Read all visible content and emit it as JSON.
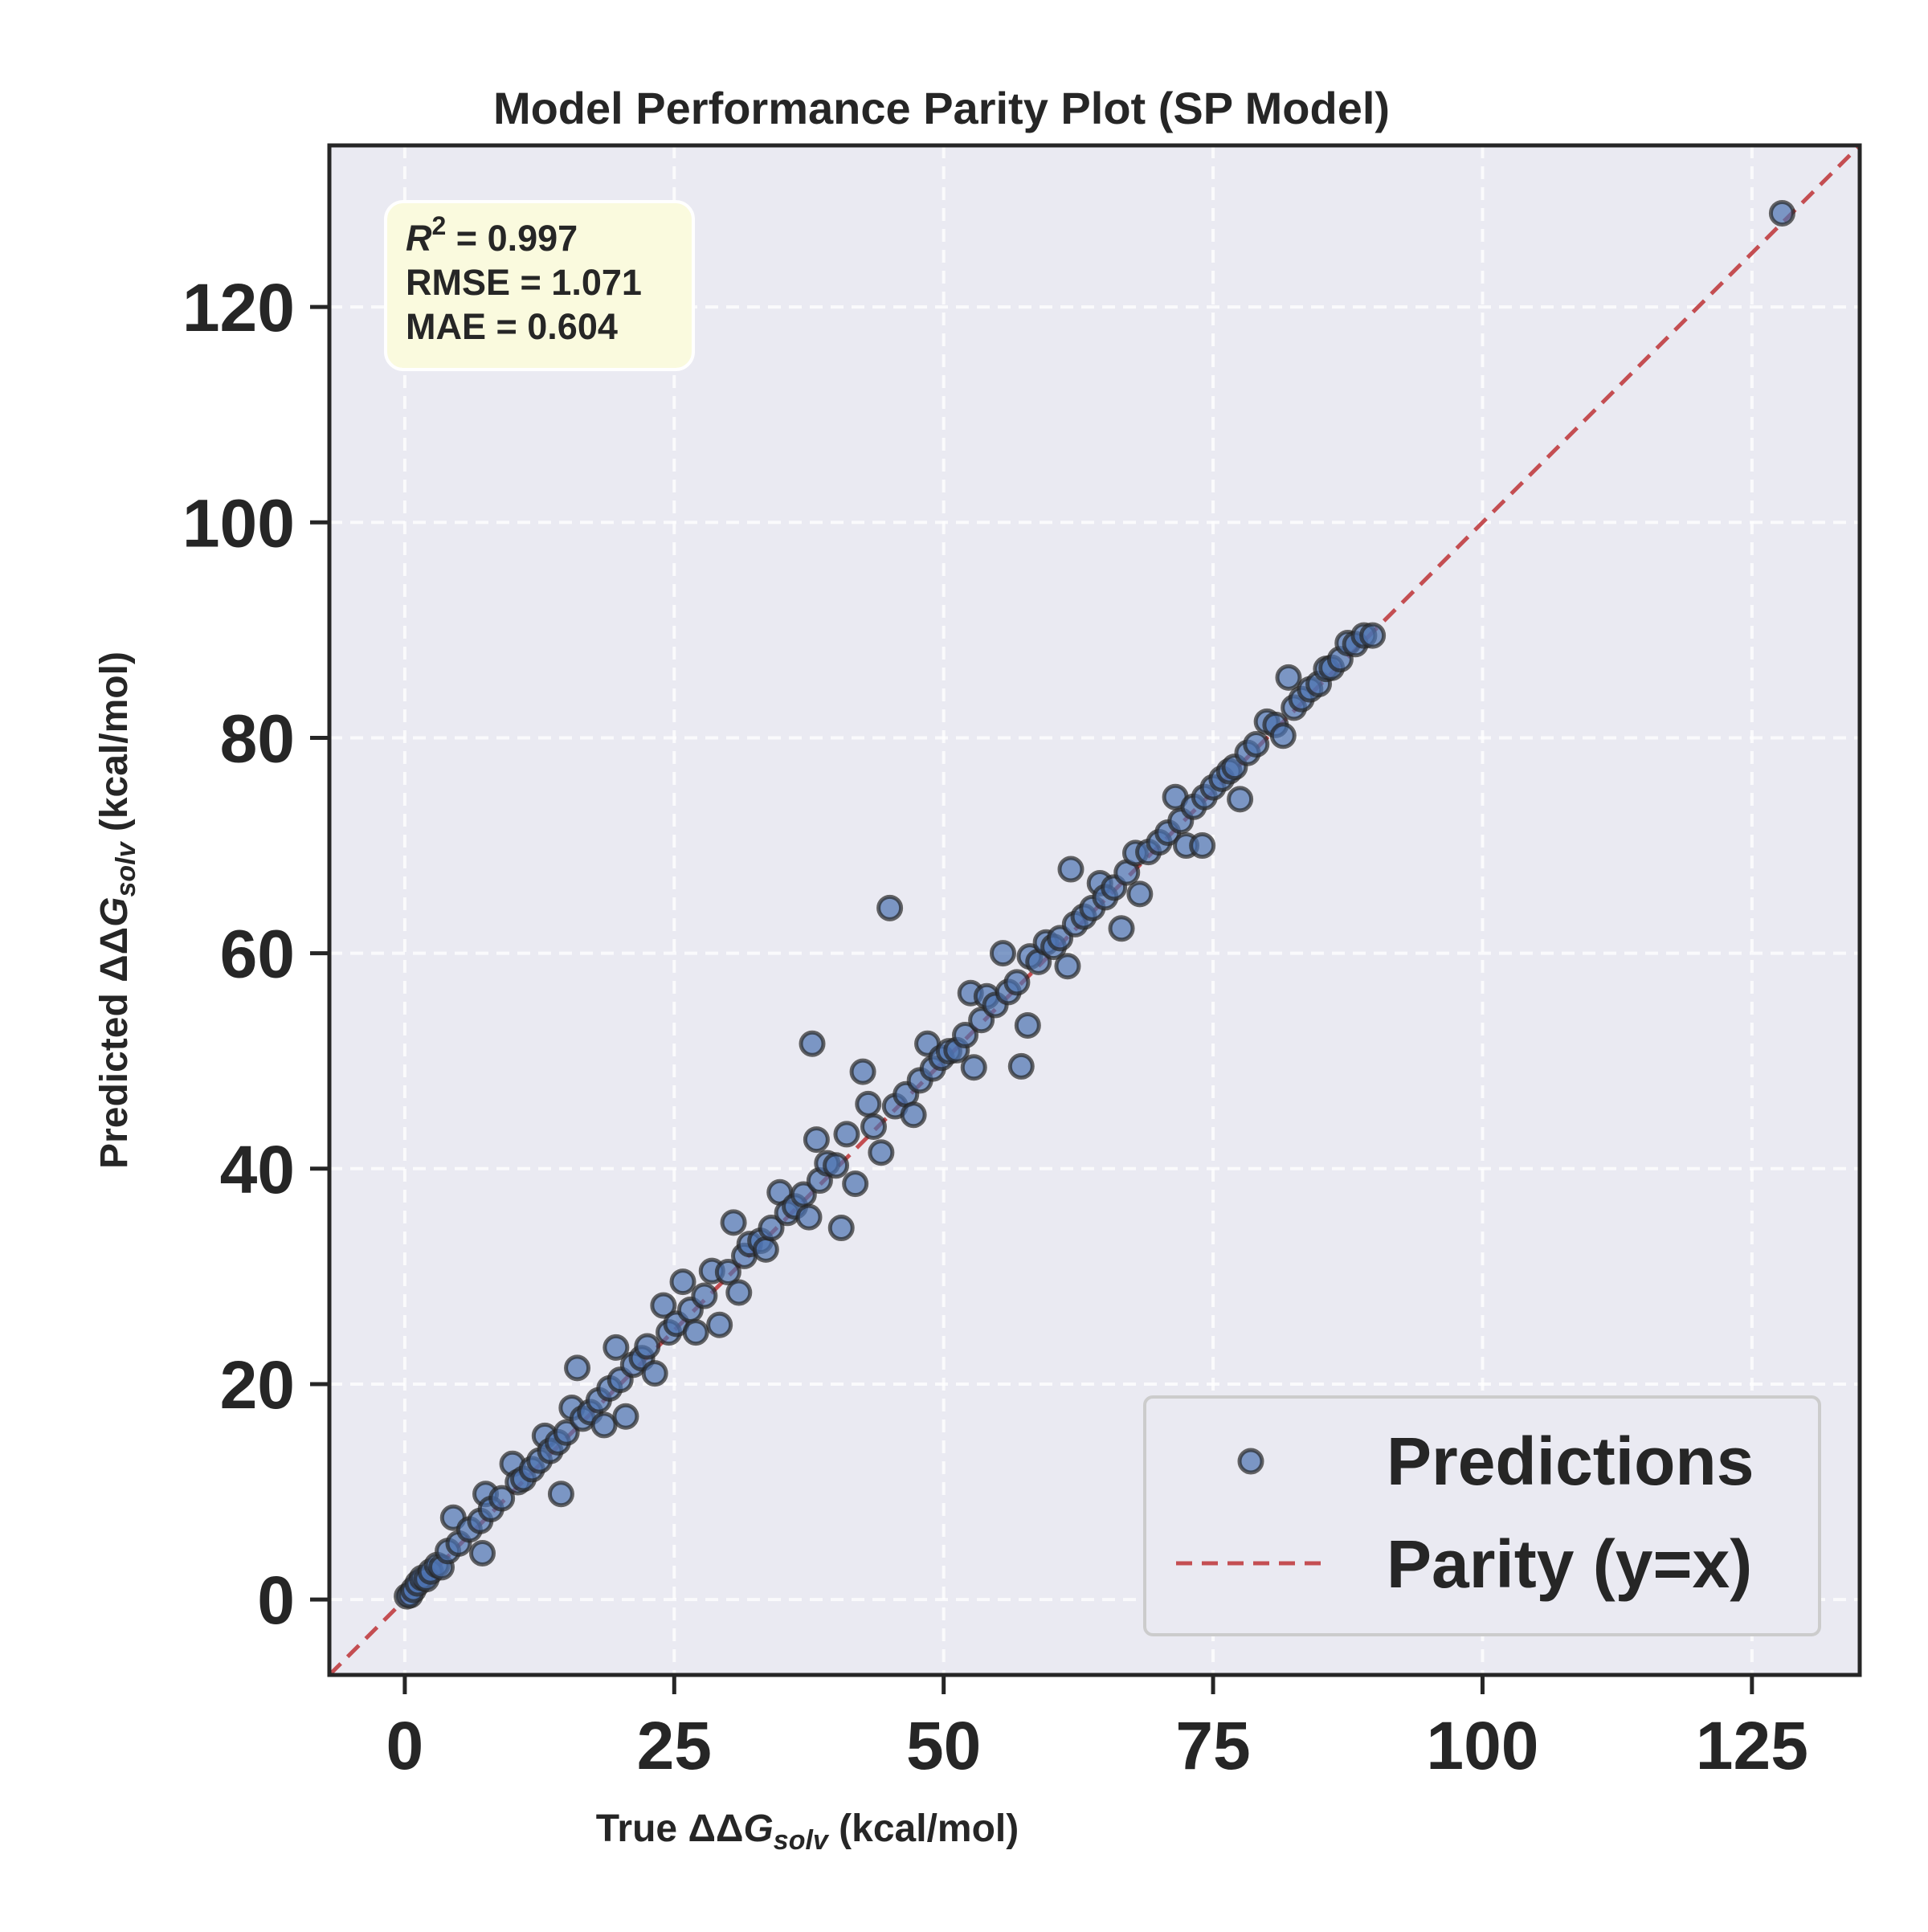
{
  "chart_data": {
    "type": "scatter",
    "title": "Model Performance Parity Plot (SP Model)",
    "xlabel": {
      "pre": "True ΔΔ",
      "var": "G",
      "sub": "solv",
      "post": " (kcal/mol)"
    },
    "ylabel": {
      "pre": "Predicted ΔΔ",
      "var": "G",
      "sub": "solv",
      "post": " (kcal/mol)"
    },
    "xlim": [
      -7,
      135
    ],
    "ylim": [
      -7,
      135
    ],
    "xticks": [
      0,
      25,
      50,
      75,
      100,
      125
    ],
    "yticks": [
      0,
      20,
      40,
      60,
      80,
      100,
      120
    ],
    "grid": true,
    "legend_position": "bottom-right",
    "stats": {
      "r2_label": "R",
      "r2_sup": "2",
      "r2_value": " = 0.997",
      "rmse": "RMSE = 1.071",
      "mae": "MAE = 0.604"
    },
    "series": [
      {
        "name": "Predictions",
        "kind": "scatter",
        "color": "#4c72b0",
        "points": [
          [
            0.2,
            0.3
          ],
          [
            0.5,
            0.4
          ],
          [
            0.8,
            0.9
          ],
          [
            1.2,
            1.5
          ],
          [
            1.6,
            2.0
          ],
          [
            2.0,
            1.9
          ],
          [
            2.4,
            2.6
          ],
          [
            3.0,
            3.2
          ],
          [
            3.4,
            3.0
          ],
          [
            4.0,
            4.5
          ],
          [
            4.5,
            7.6
          ],
          [
            5.0,
            5.2
          ],
          [
            6.0,
            6.5
          ],
          [
            7.0,
            7.3
          ],
          [
            7.2,
            4.3
          ],
          [
            7.5,
            9.8
          ],
          [
            8.0,
            8.4
          ],
          [
            9.0,
            9.4
          ],
          [
            10.0,
            12.6
          ],
          [
            10.5,
            10.9
          ],
          [
            11.0,
            11.2
          ],
          [
            11.8,
            12.1
          ],
          [
            12.5,
            12.9
          ],
          [
            13.0,
            15.2
          ],
          [
            13.5,
            13.8
          ],
          [
            14.2,
            14.6
          ],
          [
            14.5,
            9.8
          ],
          [
            15.0,
            15.5
          ],
          [
            15.5,
            17.8
          ],
          [
            16.0,
            21.5
          ],
          [
            16.5,
            16.8
          ],
          [
            17.2,
            17.4
          ],
          [
            18.0,
            18.5
          ],
          [
            18.5,
            16.2
          ],
          [
            19.0,
            19.6
          ],
          [
            19.6,
            23.4
          ],
          [
            20.0,
            20.4
          ],
          [
            20.5,
            17.0
          ],
          [
            21.2,
            21.8
          ],
          [
            22.0,
            22.4
          ],
          [
            22.5,
            23.5
          ],
          [
            23.2,
            21.0
          ],
          [
            24.0,
            27.3
          ],
          [
            24.5,
            24.8
          ],
          [
            25.2,
            25.6
          ],
          [
            25.8,
            29.5
          ],
          [
            26.5,
            26.9
          ],
          [
            27.0,
            24.8
          ],
          [
            27.8,
            28.2
          ],
          [
            28.5,
            30.5
          ],
          [
            29.2,
            25.5
          ],
          [
            30.0,
            30.4
          ],
          [
            30.5,
            35.0
          ],
          [
            31.0,
            28.5
          ],
          [
            31.5,
            31.9
          ],
          [
            32.0,
            33.0
          ],
          [
            33.0,
            33.3
          ],
          [
            33.5,
            32.5
          ],
          [
            34.0,
            34.5
          ],
          [
            34.8,
            37.8
          ],
          [
            35.5,
            35.9
          ],
          [
            36.2,
            36.5
          ],
          [
            37.0,
            37.6
          ],
          [
            37.5,
            35.5
          ],
          [
            37.8,
            51.6
          ],
          [
            38.2,
            42.7
          ],
          [
            38.5,
            38.9
          ],
          [
            39.2,
            40.5
          ],
          [
            40.0,
            40.3
          ],
          [
            40.5,
            34.5
          ],
          [
            41.0,
            43.2
          ],
          [
            41.8,
            38.6
          ],
          [
            42.5,
            49.0
          ],
          [
            43.0,
            46.0
          ],
          [
            43.5,
            43.9
          ],
          [
            44.2,
            41.5
          ],
          [
            45.0,
            64.2
          ],
          [
            45.5,
            45.8
          ],
          [
            46.5,
            46.9
          ],
          [
            47.2,
            45.0
          ],
          [
            47.8,
            48.2
          ],
          [
            48.5,
            51.6
          ],
          [
            49.0,
            49.3
          ],
          [
            49.8,
            50.3
          ],
          [
            50.5,
            50.9
          ],
          [
            51.2,
            51.0
          ],
          [
            52.0,
            52.4
          ],
          [
            52.5,
            56.3
          ],
          [
            52.8,
            49.4
          ],
          [
            53.5,
            53.8
          ],
          [
            54.0,
            56.0
          ],
          [
            54.8,
            55.2
          ],
          [
            55.5,
            60.0
          ],
          [
            56.0,
            56.4
          ],
          [
            56.8,
            57.3
          ],
          [
            57.2,
            49.5
          ],
          [
            57.8,
            53.3
          ],
          [
            58.0,
            59.7
          ],
          [
            58.8,
            59.2
          ],
          [
            59.5,
            61.0
          ],
          [
            60.2,
            60.6
          ],
          [
            60.8,
            61.4
          ],
          [
            61.5,
            58.8
          ],
          [
            61.8,
            67.8
          ],
          [
            62.2,
            62.7
          ],
          [
            63.0,
            63.4
          ],
          [
            63.8,
            64.2
          ],
          [
            64.5,
            66.5
          ],
          [
            65.0,
            65.2
          ],
          [
            65.8,
            66.1
          ],
          [
            66.5,
            62.3
          ],
          [
            67.0,
            67.5
          ],
          [
            67.8,
            69.3
          ],
          [
            68.2,
            65.5
          ],
          [
            69.0,
            69.4
          ],
          [
            70.0,
            70.3
          ],
          [
            70.8,
            71.2
          ],
          [
            71.5,
            74.5
          ],
          [
            72.0,
            72.3
          ],
          [
            72.5,
            70.0
          ],
          [
            73.2,
            73.6
          ],
          [
            74.0,
            70.0
          ],
          [
            74.2,
            74.5
          ],
          [
            75.0,
            75.4
          ],
          [
            75.8,
            76.2
          ],
          [
            76.5,
            76.9
          ],
          [
            77.0,
            77.3
          ],
          [
            77.5,
            74.3
          ],
          [
            78.2,
            78.6
          ],
          [
            79.0,
            79.4
          ],
          [
            80.0,
            81.5
          ],
          [
            80.8,
            81.2
          ],
          [
            81.5,
            80.2
          ],
          [
            82.0,
            85.6
          ],
          [
            82.5,
            82.8
          ],
          [
            83.2,
            83.6
          ],
          [
            84.0,
            84.5
          ],
          [
            84.8,
            85.0
          ],
          [
            85.5,
            86.4
          ],
          [
            86.0,
            86.5
          ],
          [
            86.8,
            87.3
          ],
          [
            87.5,
            88.8
          ],
          [
            88.2,
            88.7
          ],
          [
            89.0,
            89.5
          ],
          [
            89.8,
            89.5
          ],
          [
            127.8,
            128.7
          ]
        ]
      },
      {
        "name": "Parity (y=x)",
        "kind": "line",
        "color": "#c44e52",
        "style": "dashed"
      }
    ]
  }
}
